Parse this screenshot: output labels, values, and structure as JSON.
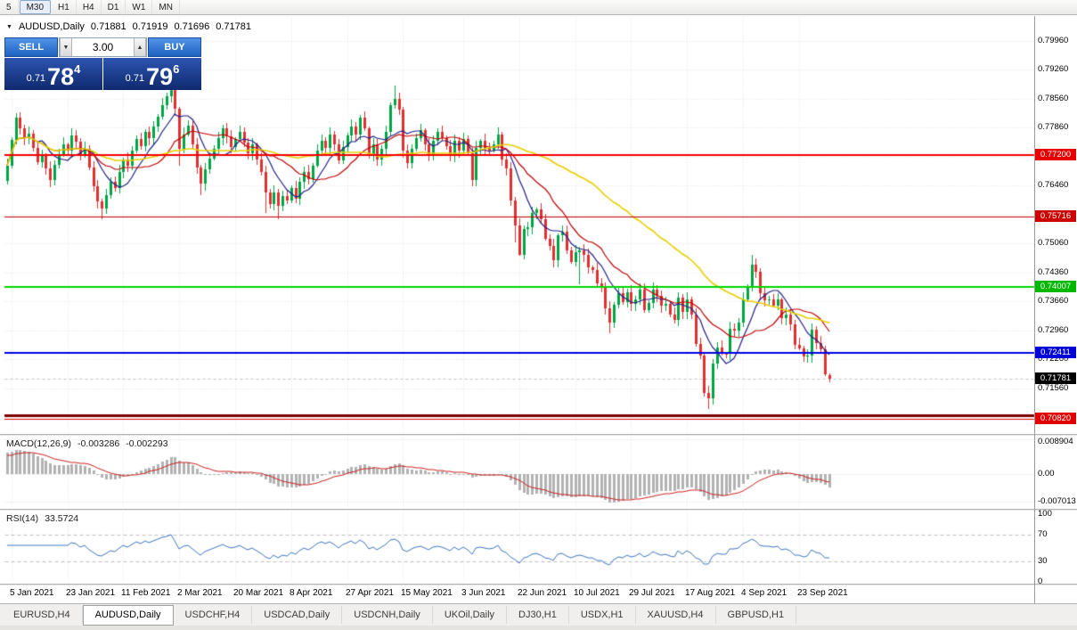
{
  "toolbar": {
    "timeframes": [
      {
        "label": "5",
        "active": false
      },
      {
        "label": "M30",
        "active": true
      },
      {
        "label": "H1",
        "active": false
      },
      {
        "label": "H4",
        "active": false
      },
      {
        "label": "D1",
        "active": false
      },
      {
        "label": "W1",
        "active": false
      },
      {
        "label": "MN",
        "active": false
      }
    ]
  },
  "chart_header": {
    "symbol": "AUDUSD,Daily",
    "open": "0.71881",
    "high": "0.71919",
    "low": "0.71696",
    "close": "0.71781"
  },
  "trade_panel": {
    "sell_label": "SELL",
    "buy_label": "BUY",
    "volume": "3.00",
    "sell_price": {
      "prefix": "0.71",
      "big": "78",
      "sup": "4"
    },
    "buy_price": {
      "prefix": "0.71",
      "big": "79",
      "sup": "6"
    }
  },
  "price_axis": {
    "ticks": [
      {
        "v": 0.7996,
        "label": "0.79960"
      },
      {
        "v": 0.7926,
        "label": "0.79260"
      },
      {
        "v": 0.7856,
        "label": "0.78560"
      },
      {
        "v": 0.7786,
        "label": "0.77860"
      },
      {
        "v": 0.7716,
        "label": "0.77160"
      },
      {
        "v": 0.7646,
        "label": "0.76460"
      },
      {
        "v": 0.7576,
        "label": "0.75760"
      },
      {
        "v": 0.7506,
        "label": "0.75060"
      },
      {
        "v": 0.7436,
        "label": "0.74360"
      },
      {
        "v": 0.7366,
        "label": "0.73660"
      },
      {
        "v": 0.7296,
        "label": "0.72960"
      },
      {
        "v": 0.7226,
        "label": "0.72260"
      },
      {
        "v": 0.7156,
        "label": "0.71560"
      },
      {
        "v": 0.7086,
        "label": "0.70860"
      }
    ]
  },
  "current_price": {
    "v": 0.71781,
    "label": "0.71781",
    "badge": "#000000"
  },
  "macd": {
    "title": "MACD(12,26,9)",
    "value_main": "-0.003286",
    "value_signal": "-0.002293",
    "axis": [
      {
        "v": 0.008904,
        "label": "0.008904"
      },
      {
        "v": 0,
        "label": "0.00"
      },
      {
        "v": -0.007013,
        "label": "-0.007013"
      }
    ]
  },
  "rsi": {
    "title": "RSI(14)",
    "value": "33.5724",
    "axis": [
      {
        "v": 100,
        "label": "100"
      },
      {
        "v": 70,
        "label": "70"
      },
      {
        "v": 30,
        "label": "30"
      },
      {
        "v": 0,
        "label": "0"
      }
    ],
    "dashed_levels": [
      70,
      30
    ]
  },
  "date_axis": [
    "5 Jan 2021",
    "23 Jan 2021",
    "11 Feb 2021",
    "2 Mar 2021",
    "20 Mar 2021",
    "8 Apr 2021",
    "27 Apr 2021",
    "15 May 2021",
    "3 Jun 2021",
    "22 Jun 2021",
    "10 Jul 2021",
    "29 Jul 2021",
    "17 Aug 2021",
    "4 Sep 2021",
    "23 Sep 2021"
  ],
  "tabs": [
    {
      "label": "EURUSD,H4",
      "active": false
    },
    {
      "label": "AUDUSD,Daily",
      "active": true
    },
    {
      "label": "USDCHF,H4",
      "active": false
    },
    {
      "label": "USDCAD,Daily",
      "active": false
    },
    {
      "label": "USDCNH,Daily",
      "active": false
    },
    {
      "label": "UKOil,Daily",
      "active": false
    },
    {
      "label": "DJ30,H1",
      "active": false
    },
    {
      "label": "USDX,H1",
      "active": false
    },
    {
      "label": "XAUUSD,H4",
      "active": false
    },
    {
      "label": "GBPUSD,H1",
      "active": false
    }
  ],
  "colors": {
    "up_candle": "#00a443",
    "down_candle": "#e03030",
    "ma_fast": "#1f1f86",
    "ma_mid": "#c00000",
    "ma_slow": "#e6cf00",
    "macd_hist": "#b2b2b2",
    "macd_signal": "#cc2222",
    "rsi_line": "#3f76c0",
    "grid": "#e4e4e4"
  },
  "chart_data": {
    "type": "candlestick",
    "symbol": "AUDUSD",
    "timeframe": "Daily",
    "title": "AUDUSD,Daily with MACD(12,26,9) and RSI(14)",
    "y_range": [
      0.7045,
      0.8001
    ],
    "first_open": 0.7657,
    "closes": [
      0.7694,
      0.7757,
      0.781,
      0.7785,
      0.776,
      0.7772,
      0.7738,
      0.7702,
      0.7718,
      0.7688,
      0.766,
      0.7696,
      0.7722,
      0.7746,
      0.773,
      0.7768,
      0.7752,
      0.772,
      0.7736,
      0.769,
      0.7645,
      0.7608,
      0.759,
      0.7622,
      0.7655,
      0.764,
      0.768,
      0.771,
      0.7695,
      0.773,
      0.7758,
      0.7742,
      0.7775,
      0.776,
      0.7788,
      0.7812,
      0.784,
      0.7862,
      0.7878,
      0.7832,
      0.7735,
      0.777,
      0.7792,
      0.7745,
      0.769,
      0.765,
      0.7686,
      0.7712,
      0.7735,
      0.776,
      0.7785,
      0.7765,
      0.774,
      0.7758,
      0.7775,
      0.775,
      0.7725,
      0.7745,
      0.771,
      0.768,
      0.763,
      0.7602,
      0.763,
      0.7598,
      0.762,
      0.761,
      0.764,
      0.7615,
      0.7655,
      0.768,
      0.7662,
      0.7695,
      0.773,
      0.7755,
      0.7738,
      0.777,
      0.7745,
      0.7706,
      0.774,
      0.7768,
      0.779,
      0.777,
      0.781,
      0.7785,
      0.7718,
      0.7745,
      0.771,
      0.7735,
      0.7775,
      0.784,
      0.7855,
      0.783,
      0.773,
      0.77,
      0.7735,
      0.776,
      0.778,
      0.7745,
      0.7722,
      0.7755,
      0.7775,
      0.776,
      0.7742,
      0.772,
      0.7755,
      0.773,
      0.7758,
      0.7725,
      0.766,
      0.7738,
      0.7755,
      0.7737,
      0.773,
      0.7745,
      0.777,
      0.771,
      0.7688,
      0.761,
      0.755,
      0.7478,
      0.754,
      0.7545,
      0.758,
      0.7588,
      0.7565,
      0.7518,
      0.75,
      0.7465,
      0.7525,
      0.7535,
      0.749,
      0.7462,
      0.7485,
      0.749,
      0.7478,
      0.7448,
      0.7442,
      0.741,
      0.74,
      0.735,
      0.7315,
      0.7358,
      0.7385,
      0.7365,
      0.7388,
      0.736,
      0.737,
      0.7395,
      0.7345,
      0.7362,
      0.7395,
      0.738,
      0.7355,
      0.736,
      0.7335,
      0.732,
      0.7375,
      0.734,
      0.737,
      0.7335,
      0.7262,
      0.7235,
      0.7145,
      0.7132,
      0.7215,
      0.7255,
      0.724,
      0.7238,
      0.73,
      0.7296,
      0.7315,
      0.737,
      0.74,
      0.7455,
      0.7438,
      0.7385,
      0.7368,
      0.737,
      0.7355,
      0.737,
      0.7325,
      0.7335,
      0.731,
      0.726,
      0.7252,
      0.7232,
      0.7235,
      0.7298,
      0.7265,
      0.725,
      0.719,
      0.71781
    ],
    "wick_overrides": {
      "2": [
        0.7822,
        null
      ],
      "22": [
        null,
        0.7564
      ],
      "38": [
        0.7888,
        null
      ],
      "39": [
        0.788,
        null
      ],
      "40": [
        null,
        0.7695
      ],
      "45": [
        null,
        0.7622
      ],
      "60": [
        null,
        0.758
      ],
      "63": [
        null,
        0.7564
      ],
      "82": [
        0.7818,
        null
      ],
      "90": [
        0.7888,
        null
      ],
      "93": [
        null,
        0.7688
      ],
      "108": [
        null,
        0.7645
      ],
      "117": [
        null,
        0.7598
      ],
      "118": [
        null,
        0.7508
      ],
      "119": [
        null,
        0.7476
      ],
      "133": [
        null,
        0.7408
      ],
      "140": [
        null,
        0.7289
      ],
      "162": [
        null,
        0.7135
      ],
      "163": [
        null,
        0.7106
      ],
      "173": [
        0.7478,
        null
      ],
      "185": [
        null,
        0.722
      ]
    },
    "last_bar": {
      "open": 0.71881,
      "high": 0.71919,
      "low": 0.71696,
      "close": 0.71781
    },
    "moving_averages": [
      {
        "period": 8,
        "color_key": "ma_fast"
      },
      {
        "period": 17,
        "color_key": "ma_mid"
      },
      {
        "period": 48,
        "color_key": "ma_slow"
      }
    ],
    "horizontal_levels": [
      {
        "v": 0.772,
        "label": "0.77200",
        "line": "#f40000",
        "width": 2,
        "badge": "#e60000"
      },
      {
        "v": 0.75716,
        "label": "0.75716",
        "line": "#c00000",
        "width": 1,
        "badge": "#cc0000"
      },
      {
        "v": 0.74007,
        "label": "0.74007",
        "line": "#00d800",
        "width": 2,
        "badge": "#00b800"
      },
      {
        "v": 0.72411,
        "label": "0.72411",
        "line": "#0000e6",
        "width": 2,
        "badge": "#0000d8"
      },
      {
        "v": 0.709,
        "label": null,
        "line": "#7c0000",
        "width": 3,
        "badge": null
      },
      {
        "v": 0.7082,
        "label": "0.70820",
        "line": "#e00000",
        "width": 1,
        "badge": "#e00000"
      }
    ],
    "indicators": {
      "macd": {
        "fast": 12,
        "slow": 26,
        "signal": 9,
        "current_main": -0.003286,
        "current_signal": -0.002293,
        "scale": [
          0.008904,
          0,
          -0.007013
        ]
      },
      "rsi": {
        "period": 14,
        "current": 33.5724,
        "levels": [
          70,
          30
        ],
        "scale": [
          100,
          70,
          30,
          0
        ]
      }
    }
  }
}
